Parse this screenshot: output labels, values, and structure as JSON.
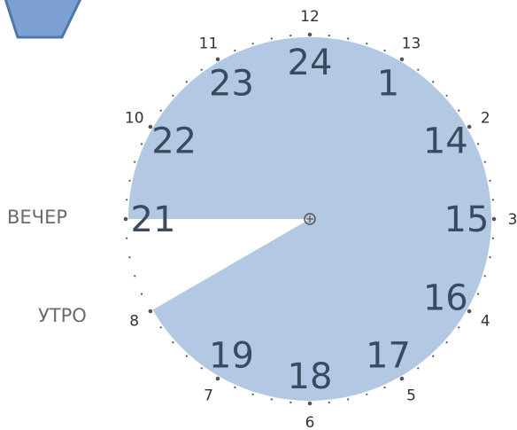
{
  "labels": {
    "evening": "ВЕЧЕР",
    "morning": "УТРО"
  },
  "outer_numbers": [
    "12",
    "13",
    "2",
    "3",
    "4",
    "5",
    "6",
    "7",
    "8",
    "10",
    "11"
  ],
  "inner_numbers": [
    "24",
    "1",
    "14",
    "15",
    "16",
    "17",
    "18",
    "19",
    "21",
    "22",
    "23"
  ],
  "sector": {
    "from_hour": 20,
    "to_hour": 21,
    "note_color": "#b3c8e3"
  },
  "colors": {
    "fill": "#b3c8e3",
    "ticks": "#555555",
    "big_text": "#3b4a5e",
    "small_text": "#333333",
    "hex": "#7ea1d3"
  }
}
